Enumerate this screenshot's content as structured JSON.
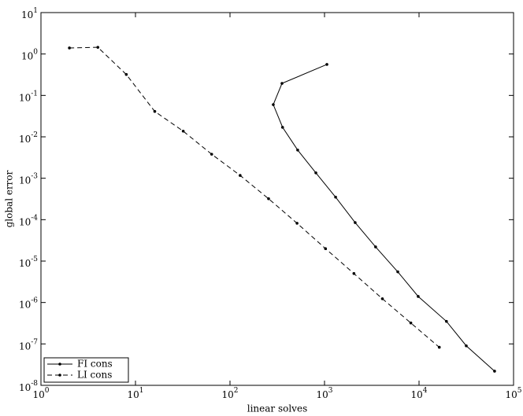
{
  "chart_data": {
    "type": "line",
    "xlabel": "linear solves",
    "ylabel": "global error",
    "xscale": "log",
    "yscale": "log",
    "xlim": [
      1,
      100000
    ],
    "ylim": [
      1e-08,
      10
    ],
    "xticks": [
      {
        "value": 1,
        "label": "10",
        "exp": "0"
      },
      {
        "value": 10,
        "label": "10",
        "exp": "1"
      },
      {
        "value": 100,
        "label": "10",
        "exp": "2"
      },
      {
        "value": 1000,
        "label": "10",
        "exp": "3"
      },
      {
        "value": 10000,
        "label": "10",
        "exp": "4"
      },
      {
        "value": 100000,
        "label": "10",
        "exp": "5"
      }
    ],
    "yticks": [
      {
        "value": 1e-08,
        "label": "10",
        "exp": "-8"
      },
      {
        "value": 1e-07,
        "label": "10",
        "exp": "-7"
      },
      {
        "value": 1e-06,
        "label": "10",
        "exp": "-6"
      },
      {
        "value": 1e-05,
        "label": "10",
        "exp": "-5"
      },
      {
        "value": 0.0001,
        "label": "10",
        "exp": "-4"
      },
      {
        "value": 0.001,
        "label": "10",
        "exp": "-3"
      },
      {
        "value": 0.01,
        "label": "10",
        "exp": "-2"
      },
      {
        "value": 0.1,
        "label": "10",
        "exp": "-1"
      },
      {
        "value": 1,
        "label": "10",
        "exp": "0"
      },
      {
        "value": 10,
        "label": "10",
        "exp": "1"
      }
    ],
    "legend": "lower left",
    "series": [
      {
        "name": "FI cons",
        "color": "#000000",
        "dash": "solid",
        "x": [
          1060,
          355,
          287,
          360,
          520,
          810,
          1310,
          2110,
          3470,
          5960,
          9800,
          19500,
          31600,
          63000
        ],
        "values": [
          0.56,
          0.195,
          0.06,
          0.017,
          0.0048,
          0.00135,
          0.00035,
          8.5e-05,
          2.2e-05,
          5.5e-06,
          1.4e-06,
          3.5e-07,
          9e-08,
          2.2e-08
        ]
      },
      {
        "name": "LI cons",
        "color": "#000000",
        "dash": "dashed",
        "x": [
          2,
          4,
          8,
          16,
          32,
          64,
          128,
          256,
          512,
          1024,
          2048,
          4096,
          8192,
          16384
        ],
        "values": [
          1.4,
          1.45,
          0.32,
          0.041,
          0.0137,
          0.0038,
          0.00117,
          0.00032,
          8.2e-05,
          2e-05,
          5e-06,
          1.23e-06,
          3.2e-07,
          8.3e-08
        ]
      }
    ]
  }
}
